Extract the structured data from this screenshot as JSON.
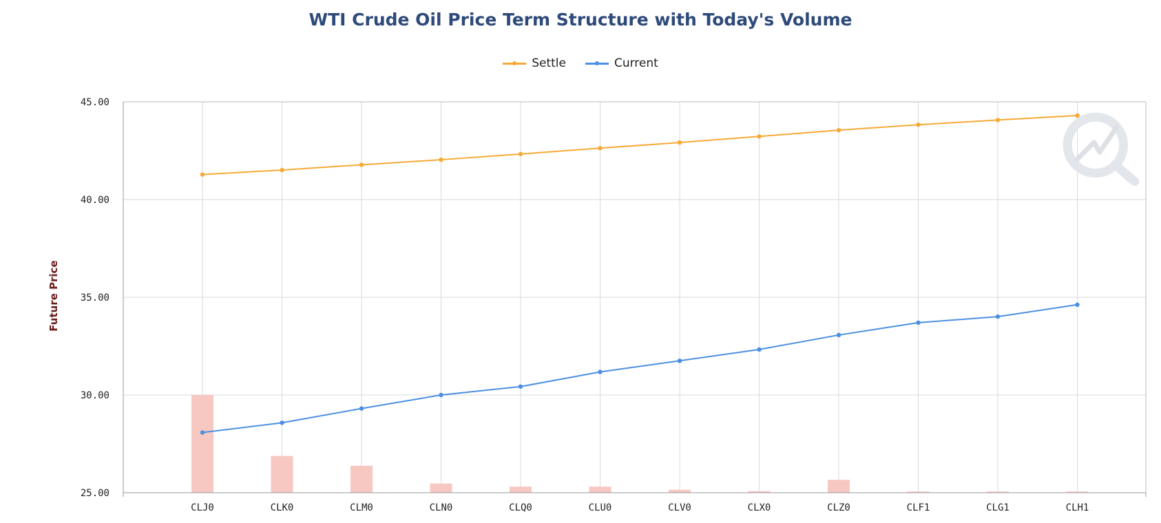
{
  "chart_data": {
    "type": "line",
    "title": "WTI Crude Oil Price Term Structure with Today's Volume",
    "xlabel": "",
    "ylabel": "Future Price",
    "categories": [
      "CLJ0",
      "CLK0",
      "CLM0",
      "CLN0",
      "CLQ0",
      "CLU0",
      "CLV0",
      "CLX0",
      "CLZ0",
      "CLF1",
      "CLG1",
      "CLH1"
    ],
    "ylim": [
      25,
      45
    ],
    "yticks": [
      "25.00",
      "30.00",
      "35.00",
      "40.00",
      "45.00"
    ],
    "grid": true,
    "legend_position": "top-center",
    "series": [
      {
        "name": "Settle",
        "color": "#f7a935",
        "values": [
          41.28,
          41.51,
          41.78,
          42.04,
          42.33,
          42.63,
          42.92,
          43.23,
          43.55,
          43.83,
          44.07,
          44.3
        ]
      },
      {
        "name": "Current",
        "color": "#4a8fe2",
        "values": [
          28.08,
          28.58,
          29.31,
          30.0,
          30.43,
          31.18,
          31.75,
          32.33,
          33.07,
          33.7,
          34.01,
          34.62
        ]
      }
    ],
    "volume_bars": {
      "color": "#f7c7c1",
      "values": [
        30.0,
        26.88,
        26.38,
        25.47,
        25.31,
        25.31,
        25.15,
        25.08,
        25.66,
        25.06,
        25.06,
        25.06
      ]
    }
  }
}
